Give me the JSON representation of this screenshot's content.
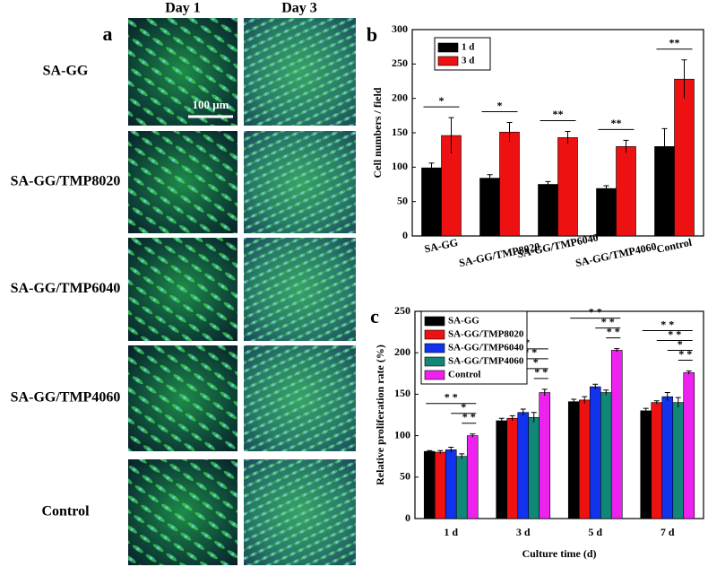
{
  "panel_a": {
    "label": "a",
    "columns": [
      "Day 1",
      "Day 3"
    ],
    "rows": [
      "SA-GG",
      "SA-GG/TMP8020",
      "SA-GG/TMP6040",
      "SA-GG/TMP4060",
      "Control"
    ],
    "scale_bar": "100 μm"
  },
  "chart_data": [
    {
      "type": "bar",
      "label": "b",
      "y_label": "Cell numbers / field",
      "categories": [
        "SA-GG",
        "SA-GG/TMP8020",
        "SA-GG/TMP6040",
        "SA-GG/TMP4060",
        "Control"
      ],
      "series": [
        {
          "name": "1 d",
          "color": "#000000",
          "values": [
            99,
            84,
            75,
            69,
            130
          ],
          "errors": [
            7,
            5,
            4,
            4,
            26
          ]
        },
        {
          "name": "3 d",
          "color": "#ee1111",
          "values": [
            146,
            151,
            143,
            130,
            228
          ],
          "errors": [
            26,
            14,
            9,
            9,
            28
          ]
        }
      ],
      "significance": [
        [
          "*"
        ],
        [
          "*"
        ],
        [
          "**"
        ],
        [
          "**"
        ],
        [
          "**"
        ]
      ],
      "ylim": [
        0,
        300
      ],
      "yticks": [
        0,
        50,
        100,
        150,
        200,
        250,
        300
      ]
    },
    {
      "type": "bar",
      "label": "c",
      "x_label": "Culture time (d)",
      "y_label": "Relative proliferation rate (%)",
      "categories": [
        "1 d",
        "3 d",
        "5 d",
        "7 d"
      ],
      "series": [
        {
          "name": "SA-GG",
          "color": "#000000",
          "values": [
            81,
            118,
            141,
            130
          ],
          "errors": [
            1,
            3,
            3,
            3
          ]
        },
        {
          "name": "SA-GG/TMP8020",
          "color": "#ee1111",
          "values": [
            80,
            121,
            143,
            140
          ],
          "errors": [
            2,
            3,
            4,
            2
          ]
        },
        {
          "name": "SA-GG/TMP6040",
          "color": "#1133ee",
          "values": [
            83,
            128,
            159,
            147
          ],
          "errors": [
            3,
            4,
            3,
            5
          ]
        },
        {
          "name": "SA-GG/TMP4060",
          "color": "#118877",
          "values": [
            75,
            122,
            152,
            140
          ],
          "errors": [
            3,
            6,
            3,
            6
          ]
        },
        {
          "name": "Control",
          "color": "#ee22ee",
          "values": [
            100,
            152,
            203,
            176
          ],
          "errors": [
            2,
            4,
            2,
            2
          ]
        }
      ],
      "significance": [
        [
          "* *",
          "*",
          "* *"
        ],
        [
          "* *",
          "* *",
          "*",
          "* *"
        ],
        [
          "* *",
          "* *",
          "* *"
        ],
        [
          "* *",
          "* *",
          "*",
          "* *"
        ]
      ],
      "ylim": [
        0,
        250
      ],
      "yticks": [
        0,
        50,
        100,
        150,
        200,
        250
      ]
    }
  ]
}
